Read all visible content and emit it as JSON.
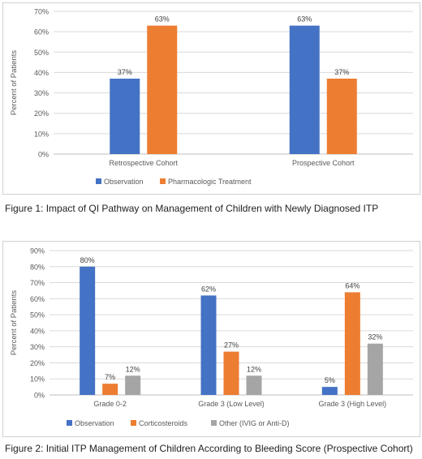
{
  "captions": {
    "figure1": "Figure 1: Impact of QI Pathway on Management of Children with Newly Diagnosed ITP",
    "figure2": "Figure 2: Initial ITP Management of Children According to Bleeding Score (Prospective Cohort)"
  },
  "chart_data": [
    {
      "type": "bar",
      "title": "",
      "xlabel": "",
      "ylabel": "Percent of Patients",
      "categories": [
        "Retrospective Cohort",
        "Prospective Cohort"
      ],
      "series": [
        {
          "name": "Observation",
          "values": [
            37,
            63
          ],
          "labels": [
            "37%",
            "63%"
          ],
          "color": "#4472C4"
        },
        {
          "name": "Pharmacologic Treatment",
          "values": [
            63,
            37
          ],
          "labels": [
            "63%",
            "37%"
          ],
          "color": "#ED7D31"
        }
      ],
      "ylim": [
        0,
        70
      ],
      "yticks": [
        0,
        10,
        20,
        30,
        40,
        50,
        60,
        70
      ],
      "ytick_labels": [
        "0%",
        "10%",
        "20%",
        "30%",
        "40%",
        "50%",
        "60%",
        "70%"
      ],
      "grid": true,
      "legend": "bottom"
    },
    {
      "type": "bar",
      "title": "",
      "xlabel": "",
      "ylabel": "Percent of Patients",
      "categories": [
        "Grade 0-2",
        "Grade 3 (Low Level)",
        "Grade 3 (High Level)"
      ],
      "series": [
        {
          "name": "Observation",
          "values": [
            80,
            62,
            5
          ],
          "labels": [
            "80%",
            "62%",
            "5%"
          ],
          "color": "#4472C4"
        },
        {
          "name": "Corticosteroids",
          "values": [
            7,
            27,
            64
          ],
          "labels": [
            "7%",
            "27%",
            "64%"
          ],
          "color": "#ED7D31"
        },
        {
          "name": "Other (IVIG or Anti-D)",
          "values": [
            12,
            12,
            32
          ],
          "labels": [
            "12%",
            "12%",
            "32%"
          ],
          "color": "#A5A5A5"
        }
      ],
      "ylim": [
        0,
        90
      ],
      "yticks": [
        0,
        10,
        20,
        30,
        40,
        50,
        60,
        70,
        80,
        90
      ],
      "ytick_labels": [
        "0%",
        "10%",
        "20%",
        "30%",
        "40%",
        "50%",
        "60%",
        "70%",
        "80%",
        "90%"
      ],
      "grid": true,
      "legend": "bottom"
    }
  ]
}
